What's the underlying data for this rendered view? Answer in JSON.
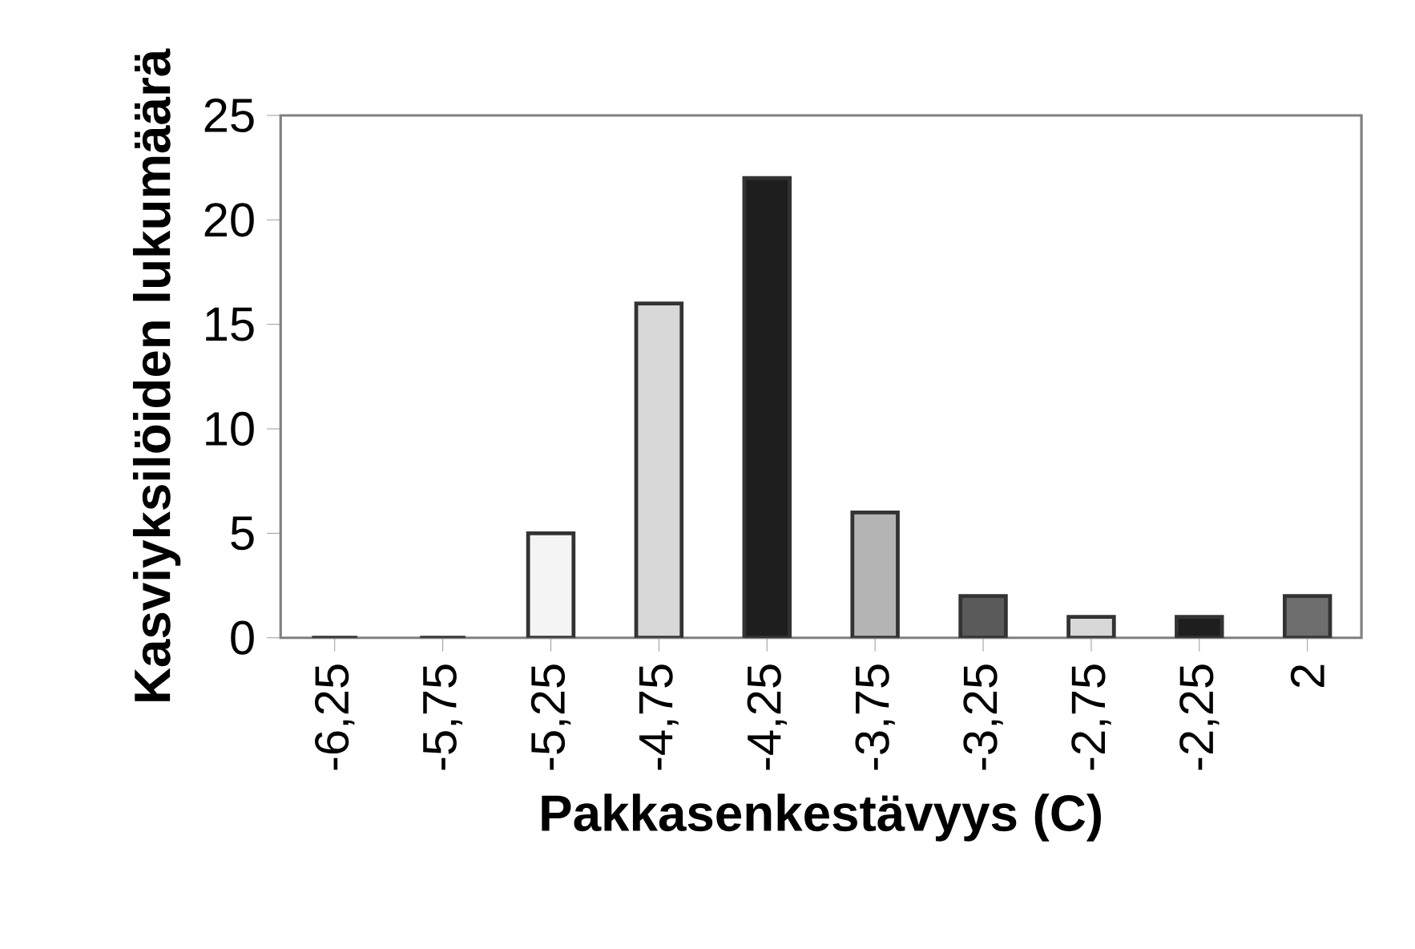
{
  "chart_data": {
    "type": "bar",
    "xlabel": "Pakkasenkestävyys (C)",
    "ylabel": "Kasviyksilöiden lukumäärä",
    "categories": [
      "-6,25",
      "-5,75",
      "-5,25",
      "-4,75",
      "-4,25",
      "-3,75",
      "-3,25",
      "-2,75",
      "-2,25",
      "2"
    ],
    "values": [
      0,
      0,
      5,
      16,
      22,
      6,
      2,
      1,
      1,
      2
    ],
    "colors": [
      "#ffffff",
      "#ffffff",
      "#f4f4f4",
      "#d8d8d8",
      "#1e1e1e",
      "#b4b4b4",
      "#5a5a5a",
      "#d8d8d8",
      "#1e1e1e",
      "#6e6e6e"
    ],
    "ylim": [
      0,
      25
    ],
    "yticks": [
      0,
      5,
      10,
      15,
      20,
      25
    ],
    "grid": false
  }
}
